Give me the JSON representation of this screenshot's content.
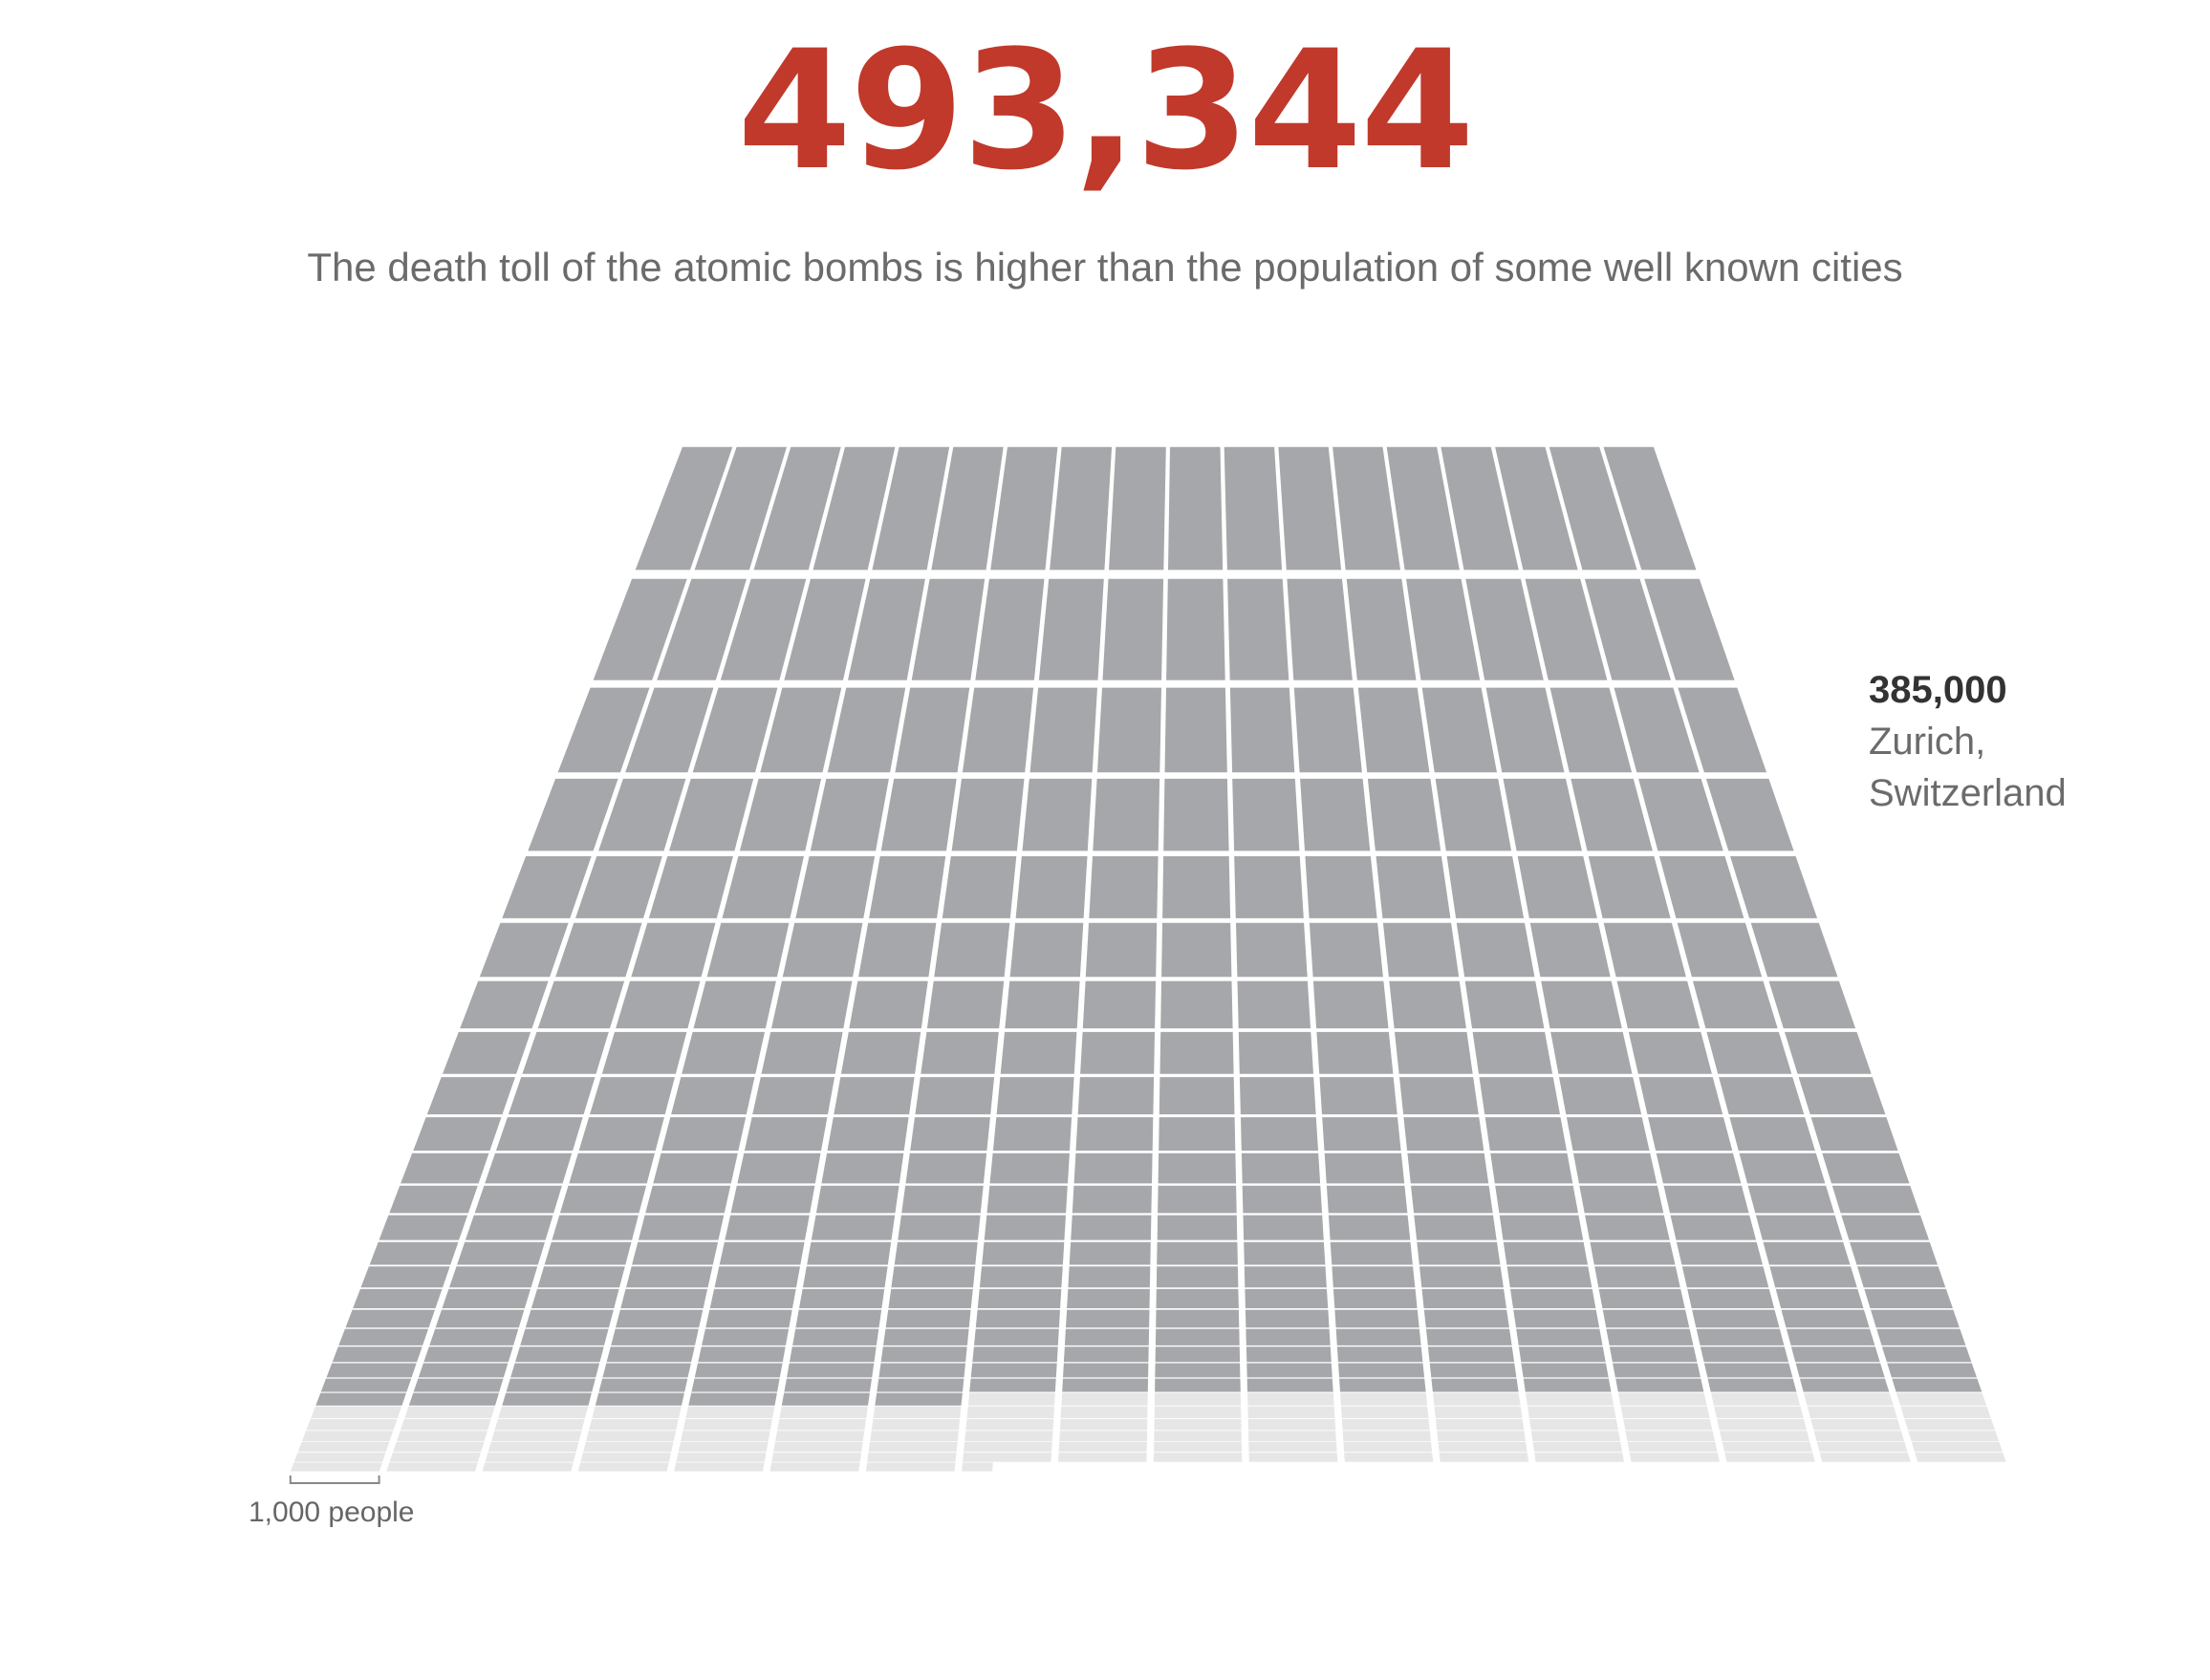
{
  "headline": "493,344",
  "subtitle": "The death toll of the atomic bombs is higher than the population of some well known cities",
  "callout": {
    "value": "385,000",
    "label": "Zurich, Switzerland"
  },
  "scale_label": "1,000 people",
  "colors": {
    "headline": "#c0392b",
    "highlight": "#a6a7aa",
    "base": "#e6e6e7",
    "text": "#6b6b6b"
  },
  "chart_data": {
    "type": "waffle",
    "unit": 1000,
    "unit_label": "1,000 people",
    "columns": 18,
    "total": 493344,
    "highlight": {
      "name": "Zurich, Switzerland",
      "value": 385000
    }
  }
}
